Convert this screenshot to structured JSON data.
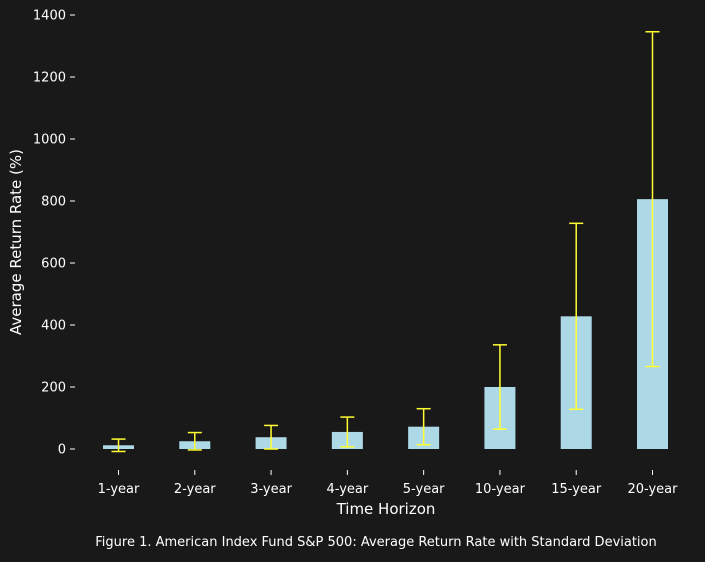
{
  "chart_data": {
    "type": "bar",
    "xlabel": "Time Horizon",
    "ylabel": "Average Return Rate (%)",
    "categories": [
      "1-year",
      "2-year",
      "3-year",
      "4-year",
      "5-year",
      "10-year",
      "15-year",
      "20-year"
    ],
    "values": [
      12,
      25,
      38,
      55,
      72,
      200,
      428,
      806
    ],
    "error": [
      20,
      28,
      38,
      48,
      58,
      136,
      300,
      540
    ],
    "ylim": [
      -70,
      1400
    ],
    "yticks": [
      0,
      200,
      400,
      600,
      800,
      1000,
      1200,
      1400
    ],
    "grid": false,
    "colors": {
      "bar": "#add8e6",
      "errorbar": "#ffff33",
      "background": "#191919",
      "text": "#ffffff"
    }
  },
  "caption": "Figure 1. American Index Fund S&P 500: Average Return Rate with Standard Deviation"
}
